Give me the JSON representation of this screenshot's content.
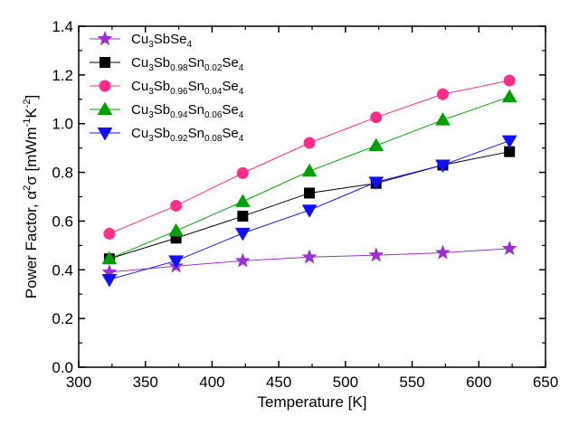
{
  "chart_data": {
    "type": "line",
    "xlabel": "Temperature [K]",
    "ylabel_parts": {
      "main": "Power Factor, ",
      "alpha": "α",
      "sup": "2",
      "sigma": "σ",
      "unit_open": " [mWm",
      "unit_sup1": "-1",
      "unit_mid": "K",
      "unit_sup2": "-2",
      "unit_close": "]"
    },
    "xlim": [
      300,
      650
    ],
    "ylim": [
      0.0,
      1.4
    ],
    "x_ticks": [
      "300",
      "350",
      "400",
      "450",
      "500",
      "550",
      "600",
      "650"
    ],
    "y_ticks": [
      "0.0",
      "0.2",
      "0.4",
      "0.6",
      "0.8",
      "1.0",
      "1.2",
      "1.4"
    ],
    "grid": false,
    "legend_position": "top-left",
    "x": [
      323,
      373,
      423,
      473,
      523,
      573,
      623
    ],
    "series": [
      {
        "name_parts": [
          {
            "t": "Cu",
            "s": ""
          },
          {
            "t": "3",
            "s": "sub"
          },
          {
            "t": "SbSe",
            "s": ""
          },
          {
            "t": "4",
            "s": "sub"
          }
        ],
        "color": "#9932CC",
        "marker": "star",
        "values": [
          0.39,
          0.415,
          0.437,
          0.452,
          0.46,
          0.47,
          0.487
        ]
      },
      {
        "name_parts": [
          {
            "t": "Cu",
            "s": ""
          },
          {
            "t": "3",
            "s": "sub"
          },
          {
            "t": "Sb",
            "s": ""
          },
          {
            "t": "0.98",
            "s": "sub"
          },
          {
            "t": "Sn",
            "s": ""
          },
          {
            "t": "0.02",
            "s": "sub"
          },
          {
            "t": "Se",
            "s": ""
          },
          {
            "t": "4",
            "s": "sub"
          }
        ],
        "color": "#000000",
        "marker": "square",
        "values": [
          0.445,
          0.53,
          0.62,
          0.715,
          0.755,
          0.83,
          0.885
        ]
      },
      {
        "name_parts": [
          {
            "t": "Cu",
            "s": ""
          },
          {
            "t": "3",
            "s": "sub"
          },
          {
            "t": "Sb",
            "s": ""
          },
          {
            "t": "0.96",
            "s": "sub"
          },
          {
            "t": "Sn",
            "s": ""
          },
          {
            "t": "0.04",
            "s": "sub"
          },
          {
            "t": "Se",
            "s": ""
          },
          {
            "t": "4",
            "s": "sub"
          }
        ],
        "color": "#FF2E8A",
        "marker": "circle",
        "values": [
          0.548,
          0.663,
          0.797,
          0.921,
          1.026,
          1.121,
          1.177
        ]
      },
      {
        "name_parts": [
          {
            "t": "Cu",
            "s": ""
          },
          {
            "t": "3",
            "s": "sub"
          },
          {
            "t": "Sb",
            "s": ""
          },
          {
            "t": "0.94",
            "s": "sub"
          },
          {
            "t": "Sn",
            "s": ""
          },
          {
            "t": "0.06",
            "s": "sub"
          },
          {
            "t": "Se",
            "s": ""
          },
          {
            "t": "4",
            "s": "sub"
          }
        ],
        "color": "#00A000",
        "marker": "triangle-up",
        "values": [
          0.445,
          0.56,
          0.68,
          0.805,
          0.91,
          1.015,
          1.11
        ]
      },
      {
        "name_parts": [
          {
            "t": "Cu",
            "s": ""
          },
          {
            "t": "3",
            "s": "sub"
          },
          {
            "t": "Sb",
            "s": ""
          },
          {
            "t": "0.92",
            "s": "sub"
          },
          {
            "t": "Sn",
            "s": ""
          },
          {
            "t": "0.08",
            "s": "sub"
          },
          {
            "t": "Se",
            "s": ""
          },
          {
            "t": "4",
            "s": "sub"
          }
        ],
        "color": "#1010FF",
        "marker": "triangle-down",
        "values": [
          0.36,
          0.437,
          0.55,
          0.645,
          0.76,
          0.83,
          0.93
        ]
      }
    ]
  }
}
